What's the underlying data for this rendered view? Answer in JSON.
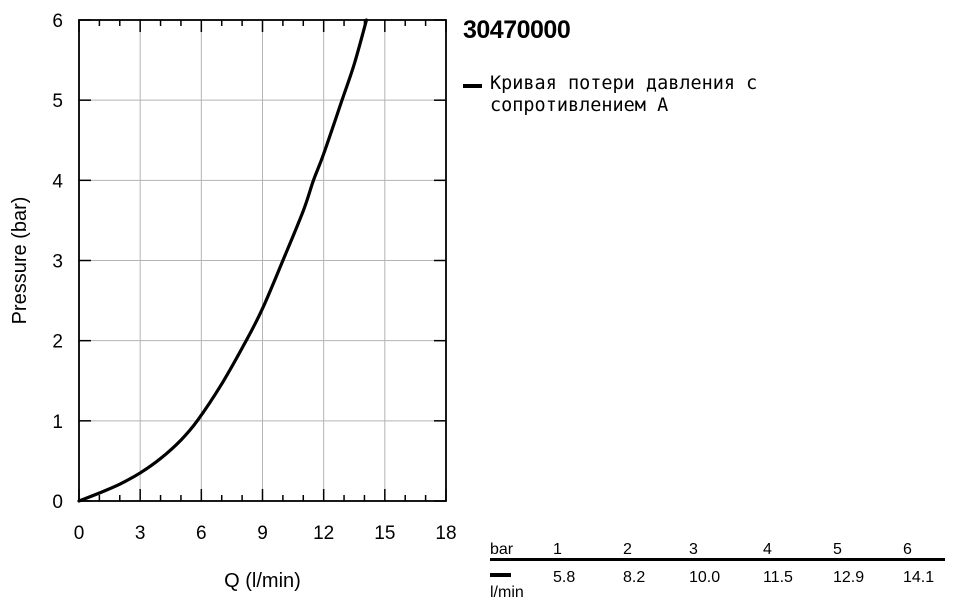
{
  "model_title": "30470000",
  "legend": {
    "label": "Кривая потери давления с сопротивлением А",
    "color": "#000000"
  },
  "chart_data": {
    "type": "line",
    "title": "",
    "xlabel": "Q (l/min)",
    "ylabel": "Pressure (bar)",
    "xlim": [
      0,
      18
    ],
    "ylim": [
      0,
      6
    ],
    "x_ticks": [
      "0",
      "3",
      "6",
      "9",
      "12",
      "15",
      "18"
    ],
    "y_ticks": [
      "0",
      "1",
      "2",
      "3",
      "4",
      "5",
      "6"
    ],
    "grid": true,
    "legend_position": "right",
    "series": [
      {
        "name": "Кривая потери давления с сопротивлением А",
        "color": "#000000",
        "x": [
          0,
          1,
          2,
          3,
          4,
          5,
          5.8,
          7,
          8.2,
          9,
          10.0,
          11,
          11.5,
          12,
          12.9,
          13.5,
          14.1
        ],
        "y": [
          0,
          0.1,
          0.21,
          0.35,
          0.53,
          0.76,
          1,
          1.46,
          2,
          2.4,
          3,
          3.62,
          4,
          4.33,
          5,
          5.45,
          6
        ]
      }
    ]
  },
  "table": {
    "bar_unit": "bar",
    "flow_unit": "l/min",
    "pressures": [
      "1",
      "2",
      "3",
      "4",
      "5",
      "6"
    ],
    "flows": [
      "5.8",
      "8.2",
      "10.0",
      "11.5",
      "12.9",
      "14.1"
    ]
  }
}
